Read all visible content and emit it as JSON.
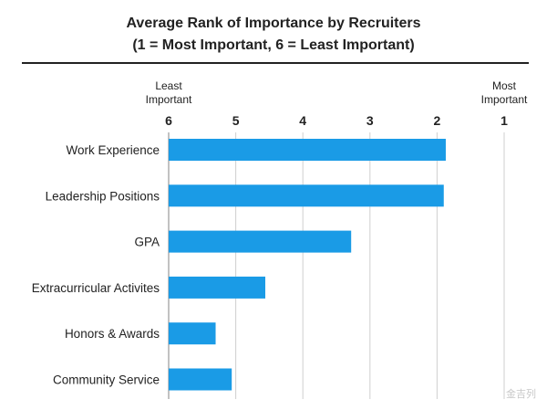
{
  "chart_data": {
    "type": "bar",
    "orientation": "horizontal",
    "title": "Average Rank of Importance by Recruiters",
    "subtitle": "(1 = Most Important, 6 = Least Important)",
    "axis": {
      "min": 1,
      "max": 6,
      "reversed": true,
      "ticks": [
        "6",
        "5",
        "4",
        "3",
        "2",
        "1"
      ],
      "left_caption": [
        "Least",
        "Important"
      ],
      "right_caption": [
        "Most",
        "Important"
      ],
      "grid": true
    },
    "categories": [
      "Work Experience",
      "Leadership Positions",
      "GPA",
      "Extracurricular Activites",
      "Honors & Awards",
      "Community Service"
    ],
    "values": [
      1.87,
      1.9,
      3.28,
      4.56,
      5.3,
      5.06
    ],
    "bar_color": "#1a9be6"
  },
  "watermark": "金吉列"
}
